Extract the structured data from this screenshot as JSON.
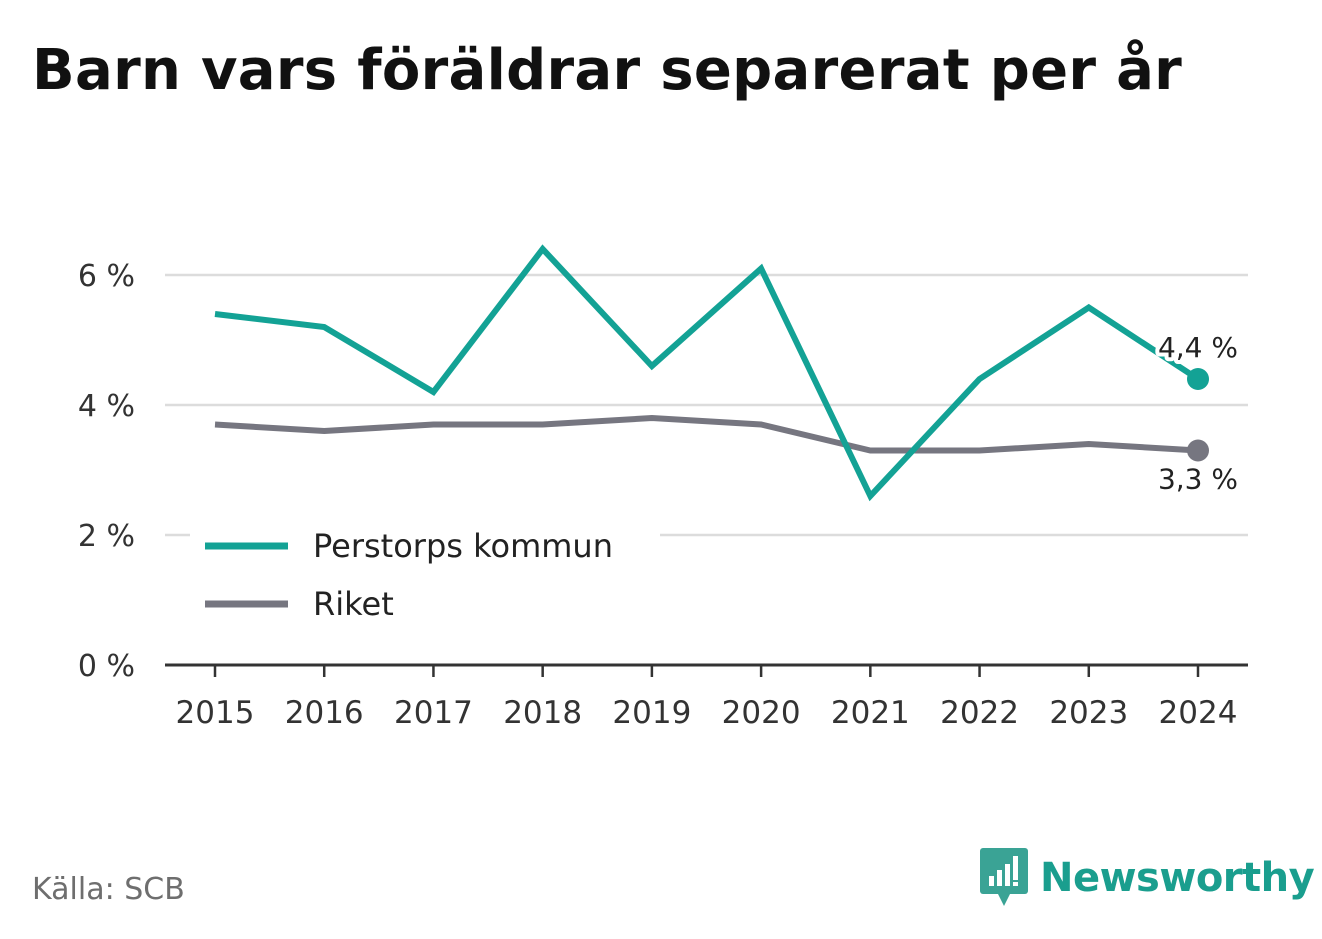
{
  "title": "Barn vars föräldrar separerat per år",
  "source": "Källa: SCB",
  "brand": {
    "name": "Newsworthy",
    "icon": "newsworthy-logo-icon"
  },
  "colors": {
    "primary": "#13a295",
    "secondary": "#767680",
    "grid": "#dcdcdc",
    "axis": "#333333"
  },
  "chart_data": {
    "type": "line",
    "x": [
      "2015",
      "2016",
      "2017",
      "2018",
      "2019",
      "2020",
      "2021",
      "2022",
      "2023",
      "2024"
    ],
    "series": [
      {
        "name": "Perstorps kommun",
        "values": [
          5.4,
          5.2,
          4.2,
          6.4,
          4.6,
          6.1,
          2.6,
          4.4,
          5.5,
          4.4
        ],
        "end_label": "4,4 %"
      },
      {
        "name": "Riket",
        "values": [
          3.7,
          3.6,
          3.7,
          3.7,
          3.8,
          3.7,
          3.3,
          3.3,
          3.4,
          3.3
        ],
        "end_label": "3,3 %"
      }
    ],
    "yticks": [
      {
        "value": 0,
        "label": "0 %"
      },
      {
        "value": 2,
        "label": "2 %"
      },
      {
        "value": 4,
        "label": "4 %"
      },
      {
        "value": 6,
        "label": "6 %"
      }
    ],
    "ylim": [
      0,
      6.5
    ],
    "grid": true,
    "legend_position": "bottom-left"
  }
}
